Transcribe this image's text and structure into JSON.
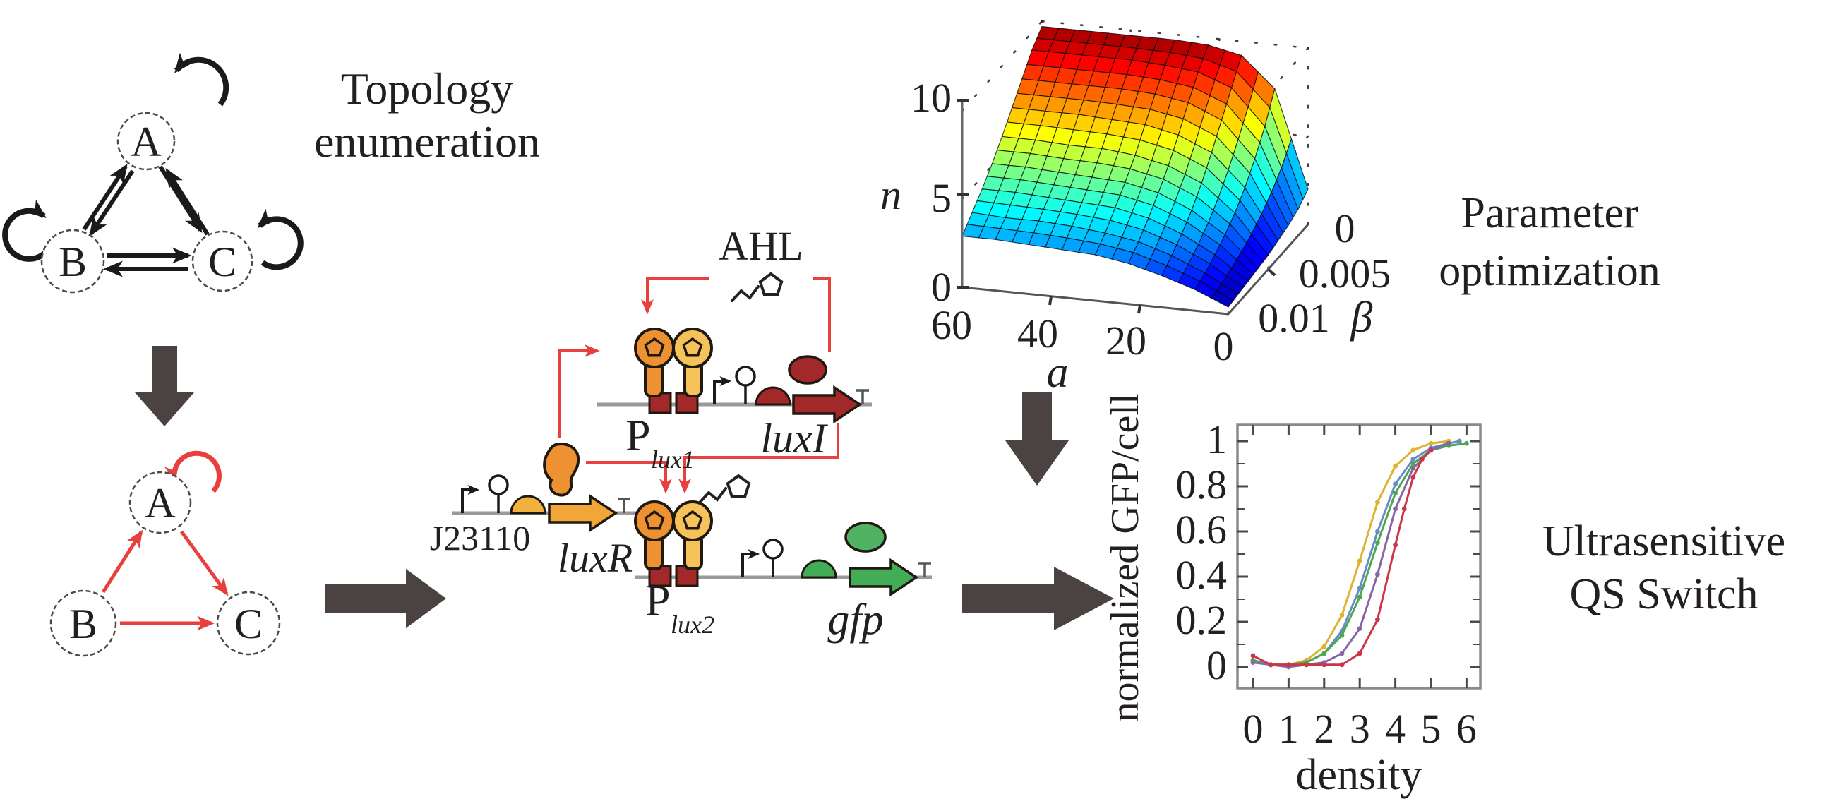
{
  "figure": {
    "topology_title": {
      "line1": "Topology",
      "line2": "enumeration"
    },
    "parameter_title": {
      "line1": "Parameter",
      "line2": "optimization"
    },
    "result_title": {
      "line1": "Ultrasensitive",
      "line2": "QS Switch"
    },
    "network_black": {
      "node_a": "A",
      "node_b": "B",
      "node_c": "C"
    },
    "network_red": {
      "node_a": "A",
      "node_b": "B",
      "node_c": "C"
    },
    "circuit": {
      "ahl": "AHL",
      "plux1_p": "P",
      "plux1_sub": "lux1",
      "luxi_gene": "luxI",
      "j23110": "J23110",
      "luxr_gene": "luxR",
      "plux2_p": "P",
      "plux2_sub": "lux2",
      "gfp_gene": "gfp"
    },
    "colors": {
      "flow_arrow": "#4a4342",
      "regulatory_red": "#e8403c",
      "luxr_orange": "#ee9132",
      "luxr_orange_light": "#f6c35a",
      "luxi_darkred": "#a3282a",
      "gfp_green": "#42ad56",
      "rbs_gold": "#f2b03c"
    }
  },
  "chart_data": [
    {
      "type": "surface",
      "name": "parameter-optimization-surface",
      "xlabel": "a",
      "ylabel": "β",
      "zlabel": "n",
      "x_ticks": [
        "60",
        "40",
        "20",
        "0"
      ],
      "y_ticks": [
        "0",
        "0.005",
        "0.01"
      ],
      "z_ticks": [
        "0",
        "5",
        "10"
      ],
      "x_range": [
        60,
        0
      ],
      "y_range": [
        0,
        0.01
      ],
      "z_range": [
        0,
        10
      ],
      "colormap": "jet",
      "grid": "dotted",
      "a_values": [
        60,
        52.5,
        45,
        37.5,
        30,
        22.5,
        15,
        7.5,
        0
      ],
      "beta_values": [
        0,
        0.00125,
        0.0025,
        0.00375,
        0.005,
        0.00625,
        0.0075,
        0.00875,
        0.01
      ],
      "n_grid": [
        [
          9.7,
          9.7,
          9.7,
          9.7,
          9.7,
          9.6,
          9.2,
          7.5,
          2.0
        ],
        [
          9.0,
          9.0,
          9.0,
          9.0,
          8.9,
          8.7,
          8.0,
          6.0,
          1.5
        ],
        [
          8.0,
          8.0,
          8.0,
          8.0,
          7.9,
          7.6,
          6.8,
          4.8,
          1.2
        ],
        [
          7.0,
          7.0,
          7.0,
          6.9,
          6.8,
          6.4,
          5.6,
          3.8,
          1.0
        ],
        [
          6.0,
          6.0,
          5.9,
          5.9,
          5.7,
          5.3,
          4.5,
          3.0,
          0.8
        ],
        [
          5.1,
          5.1,
          5.0,
          4.9,
          4.8,
          4.4,
          3.6,
          2.4,
          0.7
        ],
        [
          4.3,
          4.3,
          4.2,
          4.1,
          4.0,
          3.6,
          2.9,
          1.9,
          0.6
        ],
        [
          3.6,
          3.5,
          3.5,
          3.4,
          3.2,
          2.9,
          2.3,
          1.5,
          0.5
        ],
        [
          2.9,
          2.9,
          2.8,
          2.7,
          2.6,
          2.3,
          1.8,
          1.2,
          0.4
        ]
      ]
    },
    {
      "type": "line",
      "name": "ultrasensitive-response",
      "xlabel": "density",
      "ylabel": "normalized GFP/cell",
      "x_ticks": [
        0,
        1,
        2,
        3,
        4,
        5,
        6
      ],
      "y_ticks": [
        0,
        0.2,
        0.4,
        0.6,
        0.8,
        1
      ],
      "xlim": [
        -0.43,
        6.4
      ],
      "ylim": [
        -0.09,
        1.07
      ],
      "legend": "none",
      "series": [
        {
          "name": "replicate-1",
          "color": "#ddb32f",
          "x": [
            0,
            0.5,
            1,
            1.5,
            2,
            2.5,
            3,
            3.5,
            4,
            4.5,
            5,
            5.5
          ],
          "y": [
            0.03,
            0.01,
            0.01,
            0.03,
            0.09,
            0.23,
            0.47,
            0.73,
            0.89,
            0.96,
            0.99,
            1.0
          ]
        },
        {
          "name": "replicate-2",
          "color": "#6b89c4",
          "x": [
            0,
            0.5,
            1,
            1.5,
            2,
            2.5,
            3,
            3.5,
            4,
            4.5,
            5,
            5.5,
            5.8
          ],
          "y": [
            0.03,
            0.01,
            0.01,
            0.02,
            0.06,
            0.16,
            0.35,
            0.6,
            0.81,
            0.92,
            0.97,
            0.99,
            1.0
          ]
        },
        {
          "name": "replicate-3",
          "color": "#4aa94e",
          "x": [
            0,
            0.5,
            1,
            1.5,
            2,
            2.5,
            3,
            3.5,
            4,
            4.5,
            5,
            5.5,
            6
          ],
          "y": [
            0.03,
            0.01,
            0.01,
            0.02,
            0.06,
            0.14,
            0.31,
            0.55,
            0.77,
            0.9,
            0.96,
            0.98,
            0.99
          ]
        },
        {
          "name": "replicate-4",
          "color": "#8766a7",
          "x": [
            0,
            0.5,
            1,
            1.5,
            2,
            2.5,
            3,
            3.5,
            4,
            4.5,
            5,
            5.5
          ],
          "y": [
            0.02,
            0.01,
            0.0,
            0.01,
            0.02,
            0.06,
            0.17,
            0.41,
            0.7,
            0.88,
            0.96,
            0.99
          ]
        },
        {
          "name": "replicate-5",
          "color": "#c9374a",
          "x": [
            0,
            0.5,
            1,
            1.5,
            2,
            2.5,
            3,
            3.5,
            4,
            4.25,
            4.5,
            4.75,
            5
          ],
          "y": [
            0.05,
            0.01,
            0.01,
            0.01,
            0.01,
            0.01,
            0.06,
            0.21,
            0.54,
            0.7,
            0.84,
            0.92,
            0.96
          ]
        }
      ]
    }
  ]
}
